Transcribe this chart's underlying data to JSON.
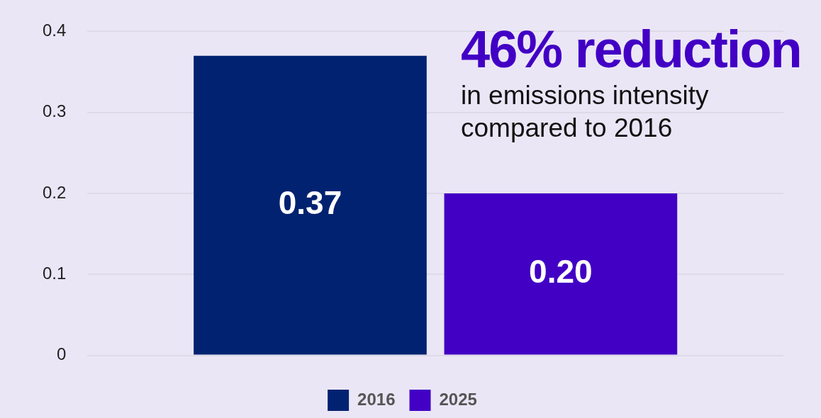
{
  "chart_data": {
    "type": "bar",
    "categories": [
      null
    ],
    "series": [
      {
        "name": "2016",
        "color": "#002270",
        "values": [
          0.37
        ],
        "value_labels": [
          "0.37"
        ]
      },
      {
        "name": "2025",
        "color": "#4200c4",
        "values": [
          0.2
        ],
        "value_labels": [
          "0.20"
        ]
      }
    ],
    "ylim": [
      0,
      0.4
    ],
    "yticks": [
      0,
      0.1,
      0.2,
      0.3,
      0.4
    ],
    "grid": "y",
    "legend": "bottom",
    "annotations": [
      "46% reduction",
      "in emissions intensity compared to 2016"
    ]
  }
}
